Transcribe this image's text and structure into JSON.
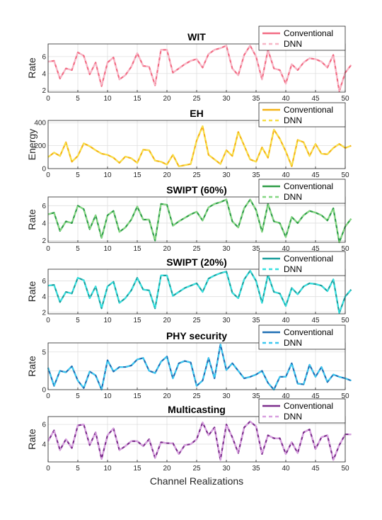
{
  "xlabel": "Channel Realizations",
  "xticks": [
    0,
    5,
    10,
    15,
    20,
    25,
    30,
    35,
    40,
    45,
    50
  ],
  "legend_labels": [
    "Conventional",
    "DNN"
  ],
  "chart_data": [
    {
      "type": "line",
      "title": "WIT",
      "ylabel": "Rate",
      "ylim": [
        1.8,
        7.5
      ],
      "yticks": [
        2,
        4,
        6
      ],
      "conv_color": "#f26b83",
      "dnn_color": "#f7b6c6",
      "series": [
        {
          "name": "Conventional",
          "values": [
            5.4,
            5.5,
            3.4,
            4.6,
            4.4,
            6.5,
            6.1,
            3.9,
            5.3,
            2.5,
            5.3,
            5.9,
            3.3,
            3.8,
            4.8,
            6.4,
            4.9,
            4.8,
            2.6,
            6.8,
            6.8,
            4.1,
            4.6,
            5.1,
            5.5,
            5.7,
            4.7,
            6.3,
            6.8,
            7.0,
            7.3,
            4.6,
            3.8,
            6.2,
            7.3,
            6.0,
            3.3,
            6.8,
            4.6,
            4.4,
            2.8,
            5.1,
            4.4,
            5.3,
            5.8,
            5.7,
            5.4,
            4.7,
            6.2,
            1.9,
            4.1,
            5.0
          ]
        },
        {
          "name": "DNN",
          "values": [
            5.4,
            5.5,
            3.4,
            4.6,
            4.4,
            6.5,
            6.1,
            3.9,
            5.3,
            2.5,
            5.3,
            5.9,
            3.3,
            3.8,
            4.8,
            6.4,
            4.9,
            4.8,
            2.6,
            6.8,
            6.8,
            4.1,
            4.6,
            5.1,
            5.5,
            5.7,
            4.7,
            6.3,
            6.8,
            7.0,
            7.3,
            4.6,
            3.8,
            6.2,
            7.3,
            6.0,
            3.3,
            6.8,
            4.6,
            4.4,
            2.8,
            5.1,
            4.4,
            5.3,
            5.8,
            5.7,
            5.4,
            4.7,
            6.2,
            1.9,
            4.1,
            5.0
          ]
        }
      ]
    },
    {
      "type": "line",
      "title": "EH",
      "ylabel": "Energy",
      "ylim": [
        0,
        420
      ],
      "yticks": [
        0,
        200,
        400
      ],
      "conv_color": "#f5b316",
      "dnn_color": "#f7e04a",
      "series": [
        {
          "name": "Conventional",
          "values": [
            100,
            140,
            110,
            230,
            60,
            110,
            220,
            195,
            160,
            130,
            120,
            95,
            50,
            105,
            90,
            50,
            165,
            160,
            70,
            60,
            35,
            120,
            20,
            30,
            40,
            245,
            370,
            120,
            80,
            40,
            160,
            110,
            320,
            200,
            80,
            60,
            185,
            95,
            340,
            260,
            150,
            20,
            250,
            230,
            110,
            215,
            130,
            125,
            180,
            215,
            180,
            200
          ]
        },
        {
          "name": "DNN",
          "values": [
            100,
            140,
            110,
            230,
            60,
            110,
            220,
            195,
            160,
            130,
            120,
            95,
            50,
            105,
            90,
            50,
            165,
            160,
            70,
            60,
            35,
            120,
            20,
            30,
            40,
            245,
            370,
            120,
            80,
            40,
            160,
            110,
            320,
            200,
            80,
            60,
            185,
            95,
            340,
            260,
            150,
            20,
            250,
            230,
            110,
            215,
            130,
            125,
            180,
            215,
            180,
            200
          ]
        }
      ]
    },
    {
      "type": "line",
      "title": "SWIPT (60%)",
      "ylabel": "Rate",
      "ylim": [
        1.8,
        7.0
      ],
      "yticks": [
        2,
        4,
        6
      ],
      "conv_color": "#2e9c47",
      "dnn_color": "#84d681",
      "series": [
        {
          "name": "Conventional",
          "values": [
            5.0,
            5.2,
            3.1,
            4.2,
            4.0,
            6.0,
            5.6,
            3.3,
            4.9,
            2.3,
            4.9,
            5.4,
            3.0,
            3.5,
            4.4,
            5.9,
            4.4,
            4.4,
            2.0,
            6.2,
            6.1,
            3.7,
            4.2,
            4.6,
            5.0,
            5.3,
            4.3,
            5.8,
            6.2,
            6.4,
            6.7,
            4.2,
            3.5,
            5.7,
            6.7,
            5.5,
            3.0,
            6.2,
            4.2,
            4.0,
            2.4,
            4.7,
            4.0,
            4.9,
            5.4,
            5.2,
            4.9,
            4.3,
            5.7,
            1.8,
            3.6,
            4.5
          ]
        },
        {
          "name": "DNN",
          "values": [
            5.0,
            5.2,
            3.1,
            4.2,
            4.0,
            6.0,
            5.6,
            3.3,
            4.9,
            2.3,
            4.9,
            5.4,
            3.0,
            3.5,
            4.4,
            5.9,
            4.4,
            4.4,
            2.0,
            6.2,
            6.1,
            3.7,
            4.2,
            4.6,
            5.0,
            5.3,
            4.3,
            5.8,
            6.2,
            6.4,
            6.7,
            4.2,
            3.5,
            5.7,
            6.7,
            5.5,
            3.0,
            6.2,
            4.2,
            4.0,
            2.4,
            4.7,
            4.0,
            4.9,
            5.4,
            5.2,
            4.9,
            4.3,
            5.7,
            1.8,
            3.6,
            4.5
          ]
        }
      ]
    },
    {
      "type": "line",
      "title": "SWIPT (20%)",
      "ylabel": "Rate",
      "ylim": [
        1.8,
        7.5
      ],
      "yticks": [
        2,
        4,
        6
      ],
      "conv_color": "#1a9e9c",
      "dnn_color": "#38e0e0",
      "series": [
        {
          "name": "Conventional",
          "values": [
            5.4,
            5.5,
            3.3,
            4.6,
            4.4,
            6.4,
            6.1,
            3.8,
            5.3,
            2.5,
            5.3,
            5.9,
            3.2,
            3.8,
            4.8,
            6.4,
            4.9,
            4.8,
            2.5,
            6.7,
            6.7,
            4.1,
            4.6,
            5.1,
            5.4,
            5.7,
            4.6,
            6.3,
            6.7,
            7.0,
            7.2,
            4.5,
            3.8,
            6.2,
            7.3,
            6.0,
            3.2,
            6.8,
            4.6,
            4.4,
            2.8,
            5.1,
            4.3,
            5.3,
            5.7,
            5.6,
            5.4,
            4.7,
            6.2,
            1.9,
            4.0,
            4.9
          ]
        },
        {
          "name": "DNN",
          "values": [
            5.4,
            5.5,
            3.3,
            4.6,
            4.4,
            6.4,
            6.1,
            3.8,
            5.3,
            2.5,
            5.3,
            5.9,
            3.2,
            3.8,
            4.8,
            6.4,
            4.9,
            4.8,
            2.5,
            6.7,
            6.7,
            4.1,
            4.6,
            5.1,
            5.4,
            5.7,
            4.6,
            6.3,
            6.7,
            7.0,
            7.2,
            4.5,
            3.8,
            6.2,
            7.3,
            6.0,
            3.2,
            6.8,
            4.6,
            4.4,
            2.8,
            5.1,
            4.3,
            5.3,
            5.7,
            5.6,
            5.4,
            4.7,
            6.2,
            1.9,
            4.0,
            4.9
          ]
        }
      ]
    },
    {
      "type": "line",
      "title": "PHY security",
      "ylabel": "Rate",
      "ylim": [
        0,
        6.2
      ],
      "yticks": [
        0,
        2.5,
        5
      ],
      "ytick_labels": [
        "0",
        "",
        "5"
      ],
      "conv_color": "#1f6fb4",
      "dnn_color": "#3dc8f0",
      "series": [
        {
          "name": "Conventional",
          "values": [
            2.9,
            0.5,
            2.5,
            2.3,
            3.1,
            1.2,
            0.2,
            2.4,
            1.9,
            0.0,
            3.9,
            2.4,
            3.0,
            3.0,
            3.2,
            4.0,
            4.2,
            2.5,
            2.2,
            3.7,
            4.4,
            1.5,
            3.5,
            3.8,
            3.6,
            0.5,
            1.2,
            4.2,
            1.5,
            6.0,
            2.6,
            3.5,
            2.5,
            1.5,
            1.7,
            2.0,
            2.5,
            0.9,
            0.0,
            1.7,
            1.7,
            3.5,
            0.8,
            0.7,
            3.3,
            1.7,
            3.0,
            1.0,
            2.0,
            1.7,
            1.5,
            1.2
          ]
        },
        {
          "name": "DNN",
          "values": [
            2.9,
            0.5,
            2.5,
            2.3,
            3.1,
            1.2,
            0.2,
            2.4,
            1.9,
            0.0,
            3.9,
            2.4,
            3.0,
            3.0,
            3.2,
            4.0,
            4.2,
            2.5,
            2.2,
            3.7,
            4.4,
            1.5,
            3.5,
            3.8,
            3.6,
            0.5,
            1.2,
            4.2,
            1.5,
            6.0,
            2.6,
            3.5,
            2.5,
            1.5,
            1.7,
            2.0,
            2.5,
            0.9,
            0.0,
            1.7,
            1.7,
            3.5,
            0.8,
            0.7,
            3.3,
            1.7,
            3.0,
            1.0,
            2.0,
            1.7,
            1.5,
            1.2
          ]
        }
      ]
    },
    {
      "type": "line",
      "title": "Multicasting",
      "ylabel": "Rate",
      "ylim": [
        2.2,
        6.8
      ],
      "yticks": [
        4,
        6
      ],
      "conv_color": "#7c2d8c",
      "dnn_color": "#d8a0e0",
      "series": [
        {
          "name": "Conventional",
          "values": [
            4.3,
            5.4,
            3.4,
            4.5,
            3.6,
            5.9,
            6.0,
            3.9,
            5.2,
            2.5,
            4.9,
            5.6,
            3.4,
            3.8,
            4.3,
            4.3,
            3.8,
            4.5,
            2.6,
            4.2,
            4.1,
            4.1,
            3.0,
            3.9,
            4.0,
            4.5,
            6.2,
            4.9,
            5.7,
            2.4,
            6.0,
            4.7,
            3.1,
            5.7,
            6.3,
            5.8,
            3.0,
            4.9,
            4.6,
            4.6,
            3.0,
            4.2,
            3.1,
            5.2,
            5.5,
            3.5,
            4.7,
            4.9,
            2.4,
            3.9,
            5.0,
            5.0
          ]
        },
        {
          "name": "DNN",
          "values": [
            4.3,
            5.4,
            3.4,
            4.5,
            3.6,
            5.9,
            6.0,
            3.9,
            5.2,
            2.5,
            4.9,
            5.6,
            3.4,
            3.8,
            4.3,
            4.3,
            3.8,
            4.5,
            2.6,
            4.2,
            4.1,
            4.1,
            3.0,
            3.9,
            4.0,
            4.5,
            6.2,
            4.9,
            5.7,
            2.4,
            6.0,
            4.7,
            3.1,
            5.7,
            6.3,
            5.8,
            3.0,
            4.9,
            4.6,
            4.6,
            3.0,
            4.2,
            3.1,
            5.2,
            5.5,
            3.5,
            4.7,
            4.9,
            2.4,
            3.9,
            5.0,
            5.0
          ]
        }
      ]
    }
  ]
}
